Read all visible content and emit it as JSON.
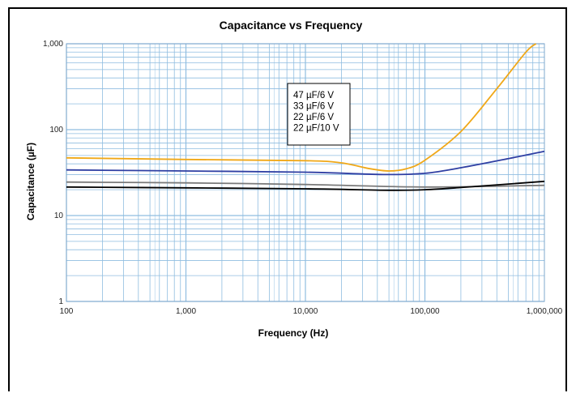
{
  "chart_data": {
    "type": "line",
    "title": "Capacitance vs Frequency",
    "xlabel": "Frequency (Hz)",
    "ylabel": "Capacitance (µF)",
    "x_scale": "log",
    "y_scale": "log",
    "xlim": [
      100,
      1000000
    ],
    "ylim": [
      1,
      1000
    ],
    "x_ticks": [
      {
        "value": 100,
        "label": "100"
      },
      {
        "value": 1000,
        "label": "1,000"
      },
      {
        "value": 10000,
        "label": "10,000"
      },
      {
        "value": 100000,
        "label": "100,000"
      },
      {
        "value": 1000000,
        "label": "1,000,000"
      }
    ],
    "y_ticks": [
      {
        "value": 1,
        "label": "1"
      },
      {
        "value": 10,
        "label": "10"
      },
      {
        "value": 100,
        "label": "100"
      },
      {
        "value": 1000,
        "label": "1,000"
      }
    ],
    "grid": true,
    "legend": "inside-center",
    "series": [
      {
        "name": "47 µF/6 V",
        "color": "#f0a818",
        "points": [
          [
            100,
            47
          ],
          [
            1000,
            45
          ],
          [
            10000,
            43.5
          ],
          [
            20000,
            41
          ],
          [
            35000,
            35
          ],
          [
            50000,
            33
          ],
          [
            70000,
            35
          ],
          [
            100000,
            44
          ],
          [
            200000,
            95
          ],
          [
            400000,
            300
          ],
          [
            700000,
            800
          ],
          [
            850000,
            1000
          ]
        ]
      },
      {
        "name": "33 µF/6 V",
        "color": "#2f3fa3",
        "points": [
          [
            100,
            34
          ],
          [
            1000,
            33
          ],
          [
            10000,
            32
          ],
          [
            30000,
            30.5
          ],
          [
            50000,
            30
          ],
          [
            100000,
            31
          ],
          [
            200000,
            36
          ],
          [
            500000,
            46
          ],
          [
            1000000,
            56
          ]
        ]
      },
      {
        "name": "22 µF/6 V",
        "color": "#7a7a7a",
        "points": [
          [
            100,
            24.5
          ],
          [
            1000,
            24
          ],
          [
            10000,
            23
          ],
          [
            100000,
            21.5
          ],
          [
            1000000,
            22.5
          ]
        ]
      },
      {
        "name": "22 µF/10 V",
        "color": "#000000",
        "points": [
          [
            100,
            21.5
          ],
          [
            1000,
            21
          ],
          [
            10000,
            20.5
          ],
          [
            50000,
            19.7
          ],
          [
            100000,
            20
          ],
          [
            200000,
            21.2
          ],
          [
            1000000,
            25
          ]
        ]
      }
    ]
  }
}
